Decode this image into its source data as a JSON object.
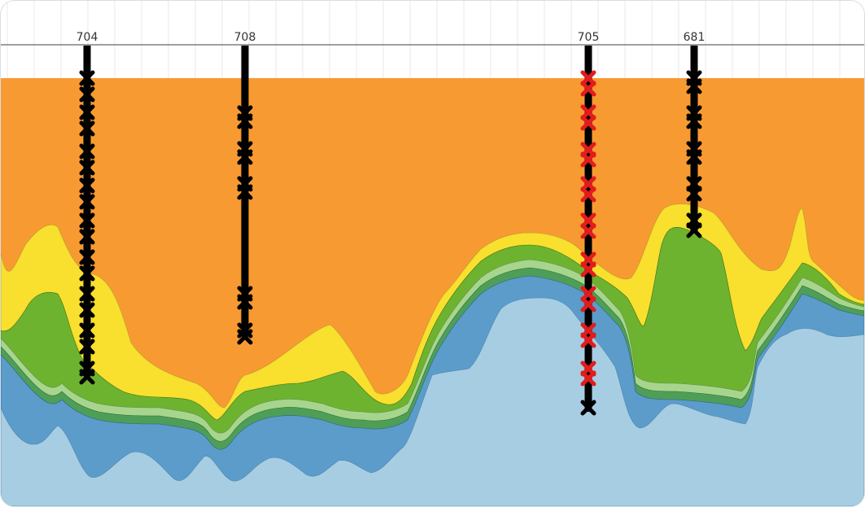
{
  "colors": {
    "orange": "#f89a32",
    "yellow": "#f9df2e",
    "green_dark": "#6db32f",
    "green_light": "#a8d58d",
    "green_mid": "#4e9e58",
    "blue_mid": "#5b9cca",
    "blue_light": "#a7cde2",
    "well_line": "#000000",
    "marker_red": "#e31c1c",
    "marker_black": "#000000",
    "grid": "#e8e8e8"
  },
  "wells": [
    {
      "label": "704",
      "marker_color": "black"
    },
    {
      "label": "708",
      "marker_color": "black"
    },
    {
      "label": "705",
      "marker_color": "red"
    },
    {
      "label": "681",
      "marker_color": "black"
    }
  ]
}
